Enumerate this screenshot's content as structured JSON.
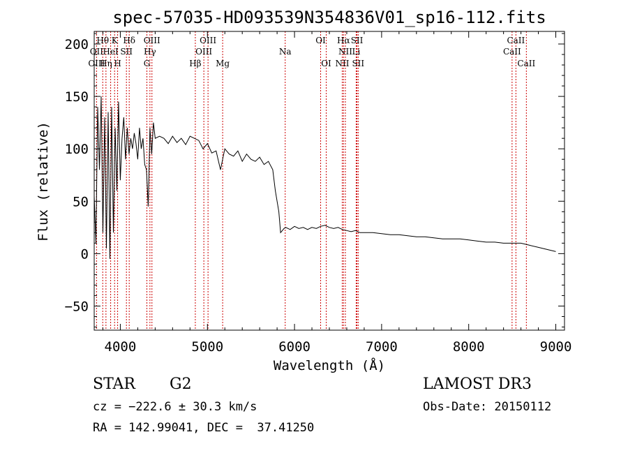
{
  "chart_data": {
    "type": "line",
    "title": "spec-57035-HD093539N354836V01_sp16-112.fits",
    "xlabel": "Wavelength (Å)",
    "ylabel": "Flux (relative)",
    "xlim": [
      3700,
      9100
    ],
    "ylim": [
      -73,
      212
    ],
    "xticks": [
      4000,
      5000,
      6000,
      7000,
      8000,
      9000
    ],
    "yticks": [
      -50,
      0,
      50,
      100,
      150,
      200
    ],
    "series": [
      {
        "name": "spectrum",
        "x": [
          3700,
          3720,
          3740,
          3760,
          3780,
          3800,
          3820,
          3840,
          3860,
          3880,
          3900,
          3920,
          3940,
          3960,
          3980,
          4000,
          4020,
          4040,
          4060,
          4080,
          4100,
          4120,
          4140,
          4160,
          4180,
          4200,
          4220,
          4240,
          4260,
          4280,
          4300,
          4320,
          4340,
          4360,
          4380,
          4400,
          4450,
          4500,
          4550,
          4600,
          4650,
          4700,
          4750,
          4800,
          4850,
          4900,
          4950,
          5000,
          5050,
          5100,
          5150,
          5200,
          5250,
          5300,
          5350,
          5400,
          5450,
          5500,
          5550,
          5600,
          5650,
          5700,
          5750,
          5780,
          5800,
          5820,
          5840,
          5860,
          5880,
          5900,
          5950,
          6000,
          6050,
          6100,
          6150,
          6200,
          6250,
          6300,
          6350,
          6400,
          6450,
          6500,
          6550,
          6600,
          6650,
          6700,
          6750,
          6800,
          6900,
          7000,
          7100,
          7200,
          7300,
          7400,
          7500,
          7600,
          7700,
          7800,
          7900,
          8000,
          8100,
          8200,
          8300,
          8400,
          8500,
          8600,
          8700,
          8800,
          8900,
          9000
        ],
        "y": [
          55,
          10,
          140,
          80,
          150,
          20,
          130,
          5,
          135,
          -5,
          140,
          20,
          120,
          60,
          145,
          70,
          110,
          130,
          90,
          120,
          95,
          110,
          100,
          115,
          105,
          90,
          120,
          100,
          110,
          85,
          80,
          45,
          120,
          95,
          125,
          110,
          112,
          110,
          105,
          112,
          106,
          110,
          104,
          112,
          110,
          108,
          100,
          105,
          96,
          98,
          80,
          100,
          95,
          93,
          98,
          88,
          95,
          90,
          88,
          92,
          85,
          88,
          80,
          60,
          50,
          40,
          20,
          22,
          24,
          25,
          23,
          26,
          24,
          25,
          23,
          25,
          24,
          26,
          27,
          25,
          24,
          25,
          23,
          22,
          21,
          22,
          20,
          20,
          20,
          19,
          18,
          18,
          17,
          16,
          16,
          15,
          14,
          14,
          14,
          13,
          12,
          11,
          11,
          10,
          10,
          10,
          8,
          6,
          4,
          2
        ]
      }
    ],
    "line_labels": [
      {
        "text": "Hθ",
        "x": 3798,
        "row": 1
      },
      {
        "text": "K",
        "x": 3934,
        "row": 1
      },
      {
        "text": "Hδ",
        "x": 4102,
        "row": 1
      },
      {
        "text": "OIII",
        "x": 4363,
        "row": 1
      },
      {
        "text": "OIII",
        "x": 5007,
        "row": 1
      },
      {
        "text": "OI",
        "x": 6300,
        "row": 1
      },
      {
        "text": "Hα",
        "x": 6563,
        "row": 1
      },
      {
        "text": "SII",
        "x": 6717,
        "row": 1
      },
      {
        "text": "CaII",
        "x": 8542,
        "row": 1
      },
      {
        "text": "OII",
        "x": 3727,
        "row": 2
      },
      {
        "text": "HeI",
        "x": 3889,
        "row": 2
      },
      {
        "text": "SII",
        "x": 4070,
        "row": 2
      },
      {
        "text": "Hγ",
        "x": 4340,
        "row": 2
      },
      {
        "text": "OIII",
        "x": 4959,
        "row": 2
      },
      {
        "text": "Na",
        "x": 5893,
        "row": 2
      },
      {
        "text": "NII",
        "x": 6584,
        "row": 2
      },
      {
        "text": "Li",
        "x": 6708,
        "row": 2
      },
      {
        "text": "CaII",
        "x": 8498,
        "row": 2
      },
      {
        "text": "OIII",
        "x": 3727,
        "row": 3
      },
      {
        "text": "Hη",
        "x": 3835,
        "row": 3
      },
      {
        "text": "H",
        "x": 3969,
        "row": 3
      },
      {
        "text": "G",
        "x": 4305,
        "row": 3
      },
      {
        "text": "Hβ",
        "x": 4861,
        "row": 3
      },
      {
        "text": "Mg",
        "x": 5175,
        "row": 3
      },
      {
        "text": "OI",
        "x": 6364,
        "row": 3
      },
      {
        "text": "NII",
        "x": 6548,
        "row": 3
      },
      {
        "text": "SII",
        "x": 6731,
        "row": 3
      },
      {
        "text": "CaII",
        "x": 8662,
        "row": 3
      }
    ],
    "line_positions": [
      3727,
      3798,
      3835,
      3889,
      3934,
      3969,
      4070,
      4102,
      4305,
      4340,
      4363,
      4861,
      4959,
      5007,
      5175,
      5893,
      6300,
      6364,
      6548,
      6563,
      6584,
      6708,
      6717,
      6731,
      8498,
      8542,
      8662
    ],
    "line_color": "#cc0000"
  },
  "info": {
    "object_class": "STAR",
    "subclass": "G2",
    "survey": "LAMOST DR3",
    "velocity": "cz = −222.6 ± 30.3 km/s",
    "obs_date": "Obs-Date: 20150112",
    "coords": "RA = 142.99041, DEC =  37.41250"
  }
}
